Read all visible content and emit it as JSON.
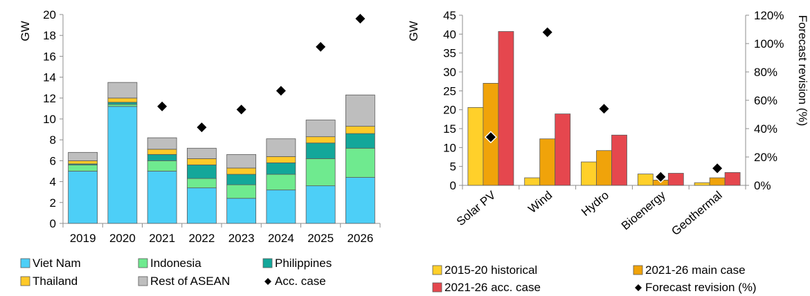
{
  "colors": {
    "viet_nam": "#4DCFF7",
    "indonesia": "#6FEA8F",
    "philippines": "#13A79A",
    "thailand": "#FFC929",
    "rest_of_asean": "#BEBEBE",
    "hist": "#FFD02A",
    "main": "#F0A30A",
    "acc": "#E5474E",
    "marker": "#000000",
    "axis": "#8C8C8C"
  },
  "chart_data": [
    {
      "type": "bar",
      "stacked": true,
      "title": "",
      "ylabel": "GW",
      "xlabel": "",
      "ylim": [
        0,
        20
      ],
      "yticks": [
        "0",
        "2",
        "4",
        "6",
        "8",
        "10",
        "12",
        "14",
        "16",
        "18",
        "20"
      ],
      "categories": [
        "2019",
        "2020",
        "2021",
        "2022",
        "2023",
        "2024",
        "2025",
        "2026"
      ],
      "series": [
        {
          "name": "Viet Nam",
          "color_key": "viet_nam",
          "values": [
            5.0,
            11.2,
            5.0,
            3.4,
            2.4,
            3.2,
            3.6,
            4.4
          ]
        },
        {
          "name": "Indonesia",
          "color_key": "indonesia",
          "values": [
            0.6,
            0.2,
            1.0,
            0.9,
            1.3,
            1.5,
            2.6,
            2.8
          ]
        },
        {
          "name": "Philippines",
          "color_key": "philippines",
          "values": [
            0.1,
            0.2,
            0.6,
            1.3,
            1.0,
            1.1,
            1.5,
            1.4
          ]
        },
        {
          "name": "Thailand",
          "color_key": "thailand",
          "values": [
            0.3,
            0.4,
            0.5,
            0.6,
            0.6,
            0.6,
            0.6,
            0.7
          ]
        },
        {
          "name": "Rest of ASEAN",
          "color_key": "rest_of_asean",
          "values": [
            0.8,
            1.5,
            1.1,
            1.0,
            1.3,
            1.7,
            1.6,
            3.0
          ]
        }
      ],
      "markers": {
        "name": "Acc. case",
        "values": [
          null,
          null,
          11.2,
          9.2,
          10.9,
          12.7,
          16.9,
          19.6
        ]
      },
      "legend": [
        "Viet Nam",
        "Indonesia",
        "Philippines",
        "Thailand",
        "Rest of ASEAN",
        "Acc. case"
      ],
      "legend_position": "bottom",
      "grid": false
    },
    {
      "type": "bar",
      "title": "",
      "ylabel": "GW",
      "y2label": "Forecast revision (%)",
      "xlabel": "",
      "ylim": [
        0,
        45
      ],
      "y2lim": [
        0,
        1.2
      ],
      "yticks": [
        "0",
        "5",
        "10",
        "15",
        "20",
        "25",
        "30",
        "35",
        "40",
        "45"
      ],
      "y2ticks": [
        "0%",
        "20%",
        "40%",
        "60%",
        "80%",
        "100%",
        "120%"
      ],
      "categories": [
        "Solar PV",
        "Wind",
        "Hydro",
        "Bioenergy",
        "Geothermal"
      ],
      "series": [
        {
          "name": "2015-20 historical",
          "color_key": "hist",
          "values": [
            20.6,
            2.0,
            6.2,
            3.0,
            0.7
          ]
        },
        {
          "name": "2021-26 main case",
          "color_key": "main",
          "values": [
            27.0,
            12.3,
            9.2,
            1.4,
            2.0
          ]
        },
        {
          "name": "2021-26 acc. case",
          "color_key": "acc",
          "values": [
            40.7,
            18.9,
            13.3,
            3.2,
            3.4
          ]
        }
      ],
      "markers": {
        "name": "Forecast revision (%)",
        "axis": "y2",
        "values": [
          0.34,
          1.08,
          0.54,
          0.06,
          0.12
        ]
      },
      "legend": [
        "2015-20 historical",
        "2021-26 main case",
        "2021-26 acc. case",
        "Forecast revision (%)"
      ],
      "legend_position": "bottom",
      "grid": false
    }
  ]
}
